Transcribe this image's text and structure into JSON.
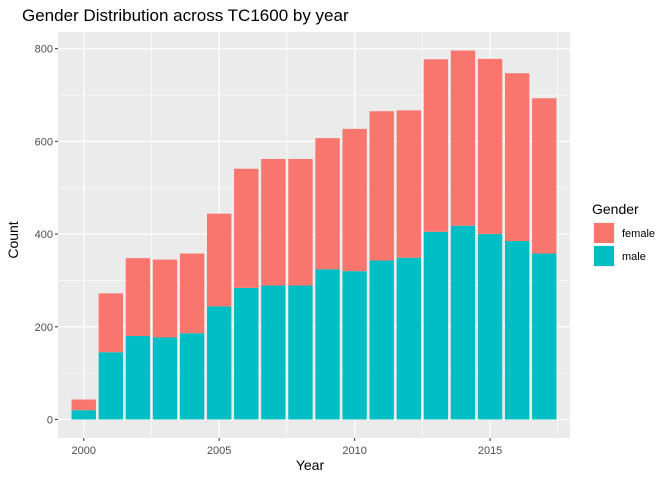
{
  "chart_data": {
    "type": "bar",
    "stacked": true,
    "title": "Gender Distribution across TC1600 by year",
    "xlabel": "Year",
    "ylabel": "Count",
    "x": [
      2000,
      2001,
      2002,
      2003,
      2004,
      2005,
      2006,
      2007,
      2008,
      2009,
      2010,
      2011,
      2012,
      2013,
      2014,
      2015,
      2016,
      2017
    ],
    "series": [
      {
        "name": "female",
        "color": "#F8766D",
        "values": [
          23,
          127,
          168,
          168,
          172,
          200,
          257,
          273,
          273,
          283,
          307,
          322,
          318,
          372,
          378,
          378,
          362,
          335
        ]
      },
      {
        "name": "male",
        "color": "#00BFC4",
        "values": [
          20,
          145,
          180,
          177,
          186,
          244,
          284,
          289,
          289,
          324,
          320,
          343,
          349,
          405,
          418,
          400,
          385,
          358
        ]
      }
    ],
    "stack_order": [
      "male",
      "female"
    ],
    "xticks": [
      2000,
      2005,
      2010,
      2015
    ],
    "yticks": [
      0,
      200,
      400,
      600,
      800
    ],
    "xlim": [
      1999.05,
      2017.95
    ],
    "ylim": [
      -40,
      836
    ],
    "grid": true,
    "legend": {
      "title": "Gender",
      "position": "right",
      "entries": [
        "female",
        "male"
      ]
    },
    "background": "#EBEBEB",
    "gridline_color": "#FFFFFF"
  }
}
